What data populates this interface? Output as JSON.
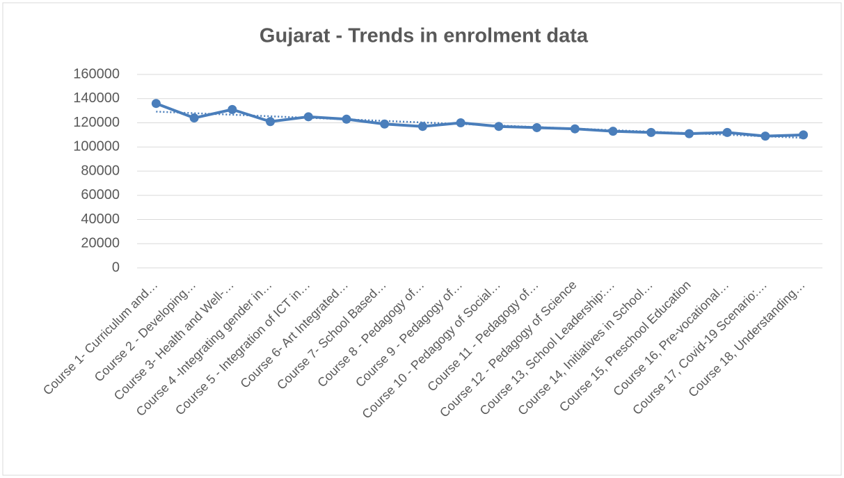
{
  "chart_data": {
    "type": "line",
    "title": "Gujarat - Trends in enrolment data",
    "categories": [
      "Course 1- Curriculum and…",
      "Course 2 - Developing…",
      "Course 3- Health and Well-…",
      "Course 4 -Integrating gender in…",
      "Course 5 - Integration of ICT in…",
      "Course 6- Art Integrated…",
      "Course 7- School Based…",
      "Course 8 - Pedagogy of…",
      "Course 9 - Pedagogy of…",
      "Course 10 - Pedagogy of Social…",
      "Course 11 - Pedagogy of…",
      "Course 12 - Pedagogy of Science",
      "Course 13, School Leadership:…",
      "Course 14, Initiatives in School…",
      "Course 15, Preschool Education",
      "Course 16,  Pre-vocational…",
      "Course 17, Covid-19 Scenario:…",
      "Course 18, Understanding…"
    ],
    "values": [
      136000,
      124000,
      131000,
      121000,
      125000,
      123000,
      119000,
      117000,
      120000,
      117000,
      116000,
      115000,
      113000,
      112000,
      111000,
      112000,
      109000,
      110000
    ],
    "color": "#4a7ebb",
    "trendline": "linear",
    "ylim": [
      0,
      160000
    ],
    "yticks": [
      0,
      20000,
      40000,
      60000,
      80000,
      100000,
      120000,
      140000,
      160000
    ],
    "grid": true
  }
}
